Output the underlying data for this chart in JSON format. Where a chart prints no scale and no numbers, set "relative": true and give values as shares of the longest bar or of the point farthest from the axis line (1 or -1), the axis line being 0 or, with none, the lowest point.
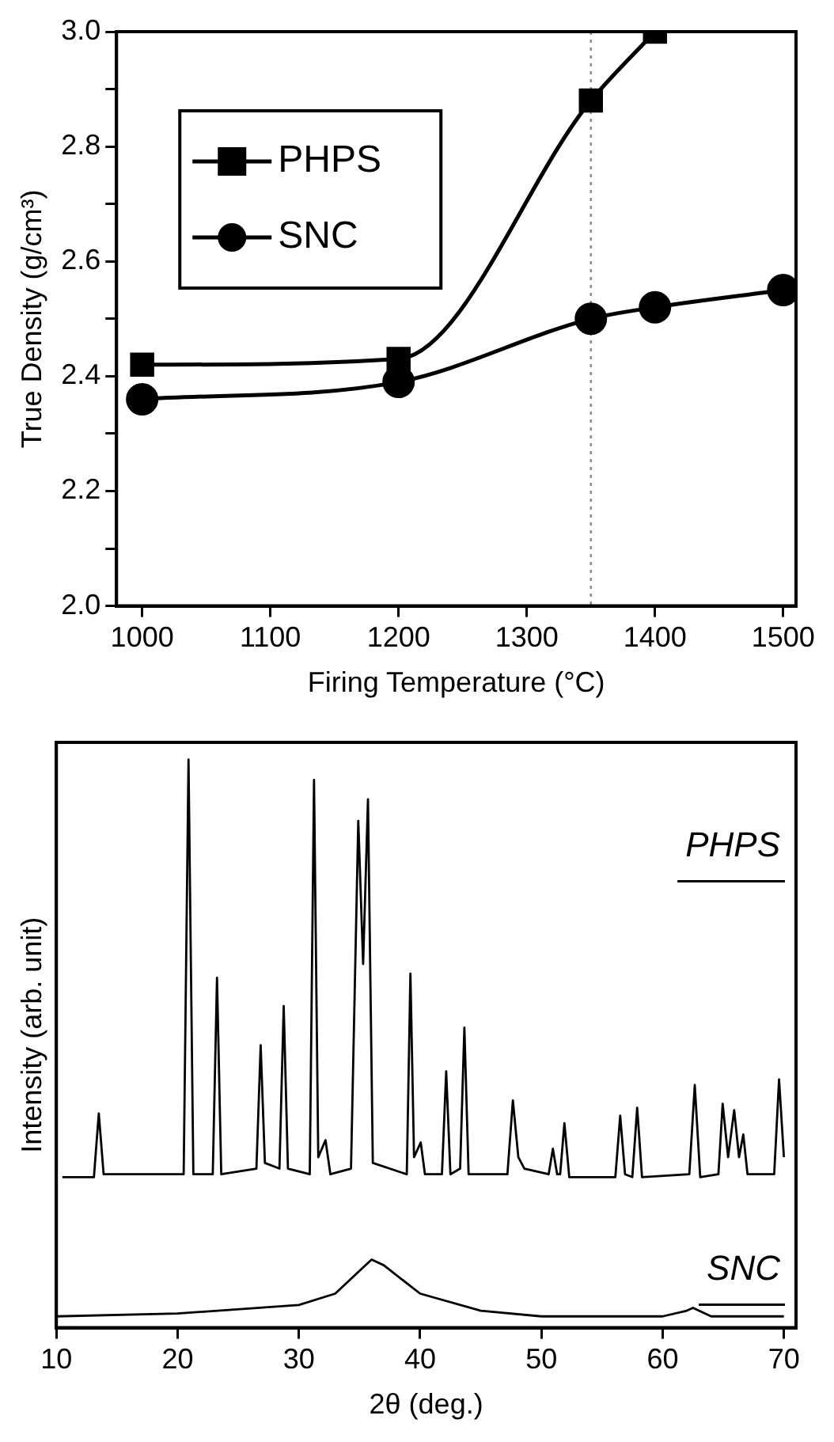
{
  "chart_data": [
    {
      "type": "line",
      "xlabel": "Firing Temperature (°C)",
      "ylabel": "True Density (g/cm³)",
      "xlim": [
        980,
        1510
      ],
      "xticks": [
        1000,
        1100,
        1200,
        1300,
        1400,
        1500
      ],
      "ylim": [
        2.0,
        3.0
      ],
      "yticks": [
        {
          "value": 2.0,
          "label": "2.0"
        },
        {
          "value": 2.1,
          "label": null
        },
        2.2,
        {
          "value": 2.3,
          "label": null
        },
        2.4,
        {
          "value": 2.5,
          "label": null
        },
        2.6,
        {
          "value": 2.7,
          "label": null
        },
        2.8,
        {
          "value": 2.9,
          "label": null
        },
        {
          "value": 3.0,
          "label": "3.0"
        }
      ],
      "legend": "top left",
      "grid": false,
      "line_style": "solid",
      "ref_lines": [
        {
          "axis": "x",
          "value": 1350,
          "color": "#888888",
          "line_style": "dotted"
        }
      ],
      "series": [
        {
          "name": "PHPS",
          "color": "#000000",
          "marker": "square",
          "x": [
            1000,
            1200,
            1350,
            1400
          ],
          "values": [
            2.42,
            2.43,
            2.88,
            3.0
          ]
        },
        {
          "name": "SNC",
          "color": "#000000",
          "marker": "circle",
          "x": [
            1000,
            1200,
            1350,
            1400,
            1500
          ],
          "values": [
            2.36,
            2.39,
            2.5,
            2.52,
            2.55
          ]
        }
      ]
    },
    {
      "type": "line",
      "xlabel": "2θ (deg.)",
      "ylabel": "Intensity (arb. unit)",
      "relative": true,
      "xlim": [
        10,
        71
      ],
      "xticks": [
        10,
        20,
        30,
        40,
        50,
        60,
        70
      ],
      "legend": false,
      "grid": false,
      "marker": "none",
      "line_style": "solid",
      "series": [
        {
          "name": "PHPS",
          "color": "#000000",
          "x": [
            10.5,
            13.1,
            13.5,
            13.9,
            20.5,
            20.9,
            21.3,
            22.9,
            23.25,
            23.6,
            26.5,
            26.85,
            27.2,
            28.4,
            28.75,
            29.1,
            30.9,
            31.25,
            31.6,
            32.2,
            32.6,
            34.3,
            34.9,
            35.3,
            35.7,
            36.1,
            38.9,
            39.2,
            39.5,
            40.05,
            40.4,
            41.8,
            42.15,
            42.5,
            43.3,
            43.65,
            44.0,
            47.2,
            47.65,
            48.1,
            48.6,
            50.6,
            50.95,
            51.3,
            51.55,
            51.9,
            52.3,
            56.1,
            56.5,
            56.9,
            57.5,
            57.9,
            58.3,
            62.2,
            62.65,
            63.1,
            64.6,
            64.95,
            65.4,
            65.9,
            66.3,
            66.65,
            67.0,
            69.2,
            69.6,
            70.0
          ],
          "values": [
            0.265,
            0.265,
            0.377,
            0.27,
            0.27,
            1.0,
            0.27,
            0.27,
            0.616,
            0.27,
            0.28,
            0.497,
            0.29,
            0.28,
            0.566,
            0.28,
            0.27,
            0.964,
            0.3,
            0.33,
            0.27,
            0.28,
            0.892,
            0.64,
            0.93,
            0.29,
            0.27,
            0.623,
            0.3,
            0.326,
            0.27,
            0.27,
            0.451,
            0.27,
            0.28,
            0.528,
            0.27,
            0.27,
            0.4,
            0.3,
            0.28,
            0.27,
            0.315,
            0.27,
            0.27,
            0.36,
            0.265,
            0.265,
            0.373,
            0.27,
            0.265,
            0.387,
            0.265,
            0.27,
            0.427,
            0.265,
            0.27,
            0.394,
            0.3,
            0.383,
            0.3,
            0.34,
            0.27,
            0.27,
            0.437,
            0.3
          ]
        },
        {
          "name": "SNC",
          "color": "#000000",
          "x": [
            10,
            20,
            30,
            33,
            35,
            36,
            37,
            40,
            45,
            50,
            60,
            62,
            62.5,
            64,
            70
          ],
          "values": [
            0.02,
            0.025,
            0.04,
            0.06,
            0.1,
            0.12,
            0.11,
            0.06,
            0.03,
            0.02,
            0.02,
            0.03,
            0.035,
            0.02,
            0.02
          ]
        }
      ]
    }
  ]
}
